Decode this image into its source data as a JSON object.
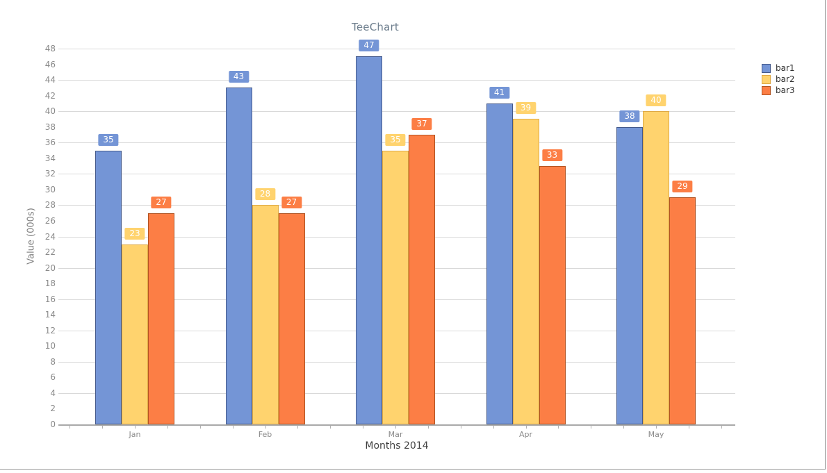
{
  "chart_data": {
    "type": "bar",
    "title": "TeeChart",
    "xlabel": "Months 2014",
    "ylabel": "Value (000s)",
    "categories": [
      "Jan",
      "Feb",
      "Mar",
      "Apr",
      "May"
    ],
    "series": [
      {
        "name": "bar1",
        "color": "#7495D6",
        "border_color": "#44598A",
        "values": [
          35,
          43,
          47,
          41,
          38
        ]
      },
      {
        "name": "bar2",
        "color": "#FFD36E",
        "border_color": "#DFA943",
        "values": [
          23,
          28,
          35,
          39,
          40
        ]
      },
      {
        "name": "bar3",
        "color": "#FC7E45",
        "border_color": "#B25322",
        "values": [
          27,
          27,
          37,
          33,
          29
        ]
      }
    ],
    "ylim": [
      0,
      48
    ],
    "y_tick_step": 2,
    "y_grid_step": 4,
    "grid": true,
    "data_labels": true,
    "legend_position": "right",
    "style": {
      "grid_color": "#D9D9D9",
      "axis_color": "#A9A9A9",
      "tick_color": "#B0B0B0",
      "tick_label_color": "#8A8A8A",
      "title_color": "#70808F",
      "x_title_color": "#3F3F3F",
      "y_title_color": "#7D7D7D",
      "legend_text_color": "#2F2F2F",
      "badge_text_color": "#FFFFFF",
      "background": "#FFFFFF"
    }
  }
}
